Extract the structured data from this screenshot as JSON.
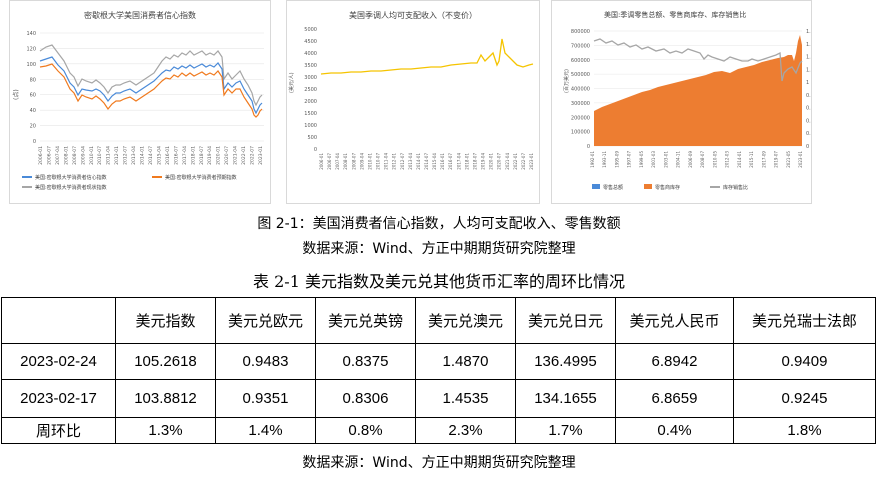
{
  "charts": [
    {
      "title": "密歇根大学美国消费者信心指数",
      "ylabel": "(点)",
      "yticks": [
        "0",
        "20",
        "40",
        "60",
        "80",
        "100",
        "120",
        "140"
      ],
      "xticks": [
        "2006-01",
        "2006-07",
        "2007-04",
        "2008-01",
        "2008-07",
        "2009-04",
        "2010-01",
        "2010-07",
        "2011-04",
        "2012-01",
        "2012-07",
        "2013-04",
        "2014-01",
        "2014-07",
        "2015-04",
        "2016-01",
        "2016-07",
        "2017-04",
        "2018-01",
        "2018-07",
        "2019-04",
        "2020-01",
        "2020-07",
        "2021-04",
        "2022-01",
        "2022-07",
        "2023-01"
      ],
      "legend": [
        "美国:密歇根大学消费者信心指数",
        "美国:密歇根大学消费者预期指数",
        "美国:密歇根大学消费者现状指数"
      ],
      "colors": {
        "confidence": "#4a8ad8",
        "expectation": "#f07a1e",
        "current": "#a6a6a6"
      }
    },
    {
      "title": "美国季调人均可支配收入（不变价）",
      "ylabel": "(美元/人)",
      "yticks": [
        "0",
        "500",
        "1000",
        "1500",
        "2000",
        "2500",
        "3000",
        "3500",
        "4000",
        "4500",
        "5000"
      ],
      "xticks": [
        "2006-01",
        "2006-07",
        "2007-04",
        "2008-01",
        "2008-07",
        "2009-04",
        "2010-01",
        "2010-07",
        "2011-04",
        "2012-01",
        "2012-07",
        "2013-04",
        "2014-01",
        "2014-07",
        "2015-04",
        "2016-01",
        "2016-07",
        "2017-04",
        "2018-01",
        "2018-07",
        "2019-04",
        "2020-01",
        "2020-07",
        "2021-04",
        "2022-01",
        "2022-07",
        "2023-01"
      ],
      "color": "#f5c400"
    },
    {
      "title": "美国:季调零售总额、零售商库存、库存销售比",
      "ylabel": "(百万美元)",
      "yticks": [
        "0",
        "100000",
        "200000",
        "300000",
        "400000",
        "500000",
        "600000",
        "700000",
        "800000"
      ],
      "y2ticks": [
        "0",
        "0.2",
        "0.4",
        "0.6",
        "0.8",
        "1",
        "1.2",
        "1.4",
        "1.6",
        "1.8"
      ],
      "xticks": [
        "1992-01",
        "1993-11",
        "1995-09",
        "1997-07",
        "1999-05",
        "2001-03",
        "2003-01",
        "2004-11",
        "2006-09",
        "2008-07",
        "2010-05",
        "2012-03",
        "2014-01",
        "2015-11",
        "2017-09",
        "2019-07",
        "2021-05",
        "2023-01"
      ],
      "legend": [
        "零售总额",
        "零售商库存",
        "库存销售比"
      ],
      "colors": {
        "sales": "#4a8ad8",
        "inventory": "#ed7d31",
        "ratio": "#a6a6a6"
      }
    }
  ],
  "figure_caption": "图 2-1：美国消费者信心指数，人均可支配收入、零售数额",
  "source_top": "数据来源：Wind、方正中期期货研究院整理",
  "table_title": "表 2-1  美元指数及美元兑其他货币汇率的周环比情况",
  "table": {
    "headers": [
      "",
      "美元指数",
      "美元兑欧元",
      "美元兑英镑",
      "美元兑澳元",
      "美元兑日元",
      "美元兑人民币",
      "美元兑瑞士法郎"
    ],
    "rows": [
      [
        "2023-02-24",
        "105.2618",
        "0.9483",
        "0.8375",
        "1.4870",
        "136.4995",
        "6.8942",
        "0.9409"
      ],
      [
        "2023-02-17",
        "103.8812",
        "0.9351",
        "0.8306",
        "1.4535",
        "134.1655",
        "6.8659",
        "0.9245"
      ],
      [
        "周环比",
        "1.3%",
        "1.4%",
        "0.8%",
        "2.3%",
        "1.7%",
        "0.4%",
        "1.8%"
      ]
    ]
  },
  "source_bottom": "数据来源：Wind、方正中期期货研究院整理"
}
